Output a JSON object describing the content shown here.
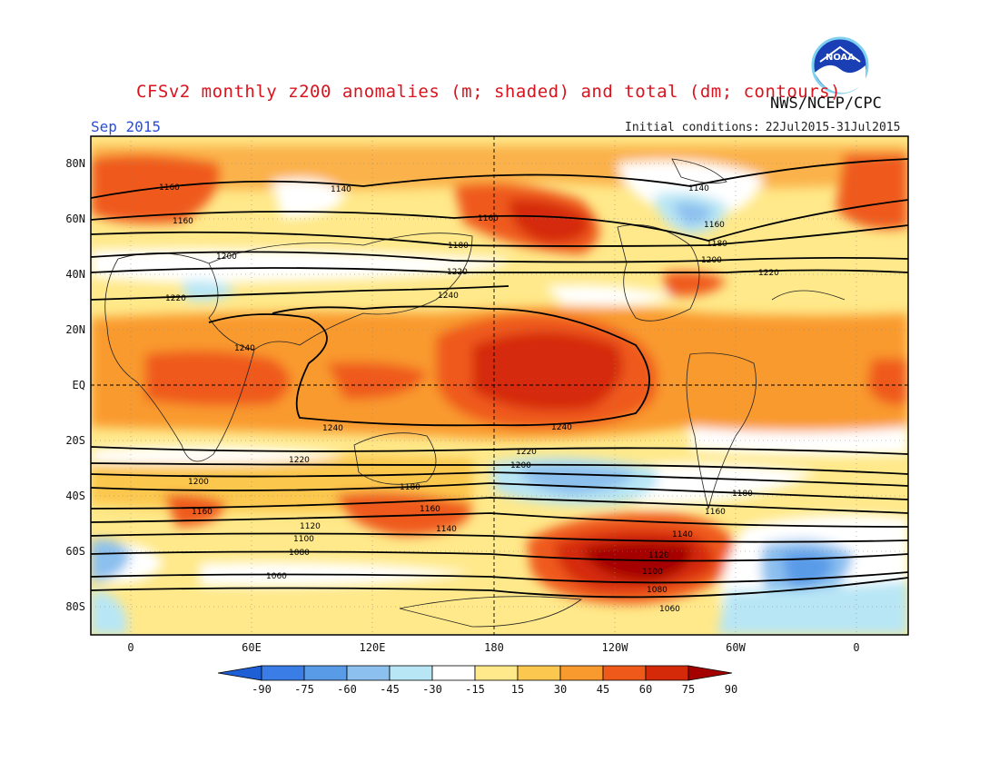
{
  "header": {
    "title": "CFSv2 monthly z200 anomalies (m; shaded) and total (dm; contours)",
    "agency": "NWS/NCEP/CPC",
    "month": "Sep 2015",
    "ic_label": "Initial conditions:",
    "ic_value": "22Jul2015-31Jul2015",
    "logo_text": "NOAA"
  },
  "axes": {
    "lat_ticks": [
      "80N",
      "60N",
      "40N",
      "20N",
      "EQ",
      "20S",
      "40S",
      "60S",
      "80S"
    ],
    "lon_ticks": [
      "0",
      "60E",
      "120E",
      "180",
      "120W",
      "60W",
      "0"
    ]
  },
  "colorbar": {
    "labels": [
      "-90",
      "-75",
      "-60",
      "-45",
      "-30",
      "-15",
      "15",
      "30",
      "45",
      "60",
      "75",
      "90"
    ],
    "colors": [
      "#1e5fd6",
      "#3a7de6",
      "#5a9be8",
      "#8cc0ef",
      "#b8e6f5",
      "#ffffff",
      "#ffe98a",
      "#fcc74e",
      "#f99a2e",
      "#ef5a1a",
      "#d52a0a",
      "#a50000"
    ]
  },
  "contour_labels": [
    "1160",
    "1160",
    "1140",
    "1160",
    "1180",
    "1200",
    "1220",
    "1240",
    "1140",
    "1160",
    "1180",
    "1200",
    "1220",
    "1220",
    "1240",
    "1240",
    "1240",
    "1220",
    "1200",
    "1180",
    "1160",
    "1140",
    "1220",
    "1200",
    "1180",
    "1160",
    "1120",
    "1100",
    "1080",
    "1060",
    "1160",
    "1140",
    "1120",
    "1100",
    "1080",
    "1060"
  ]
}
